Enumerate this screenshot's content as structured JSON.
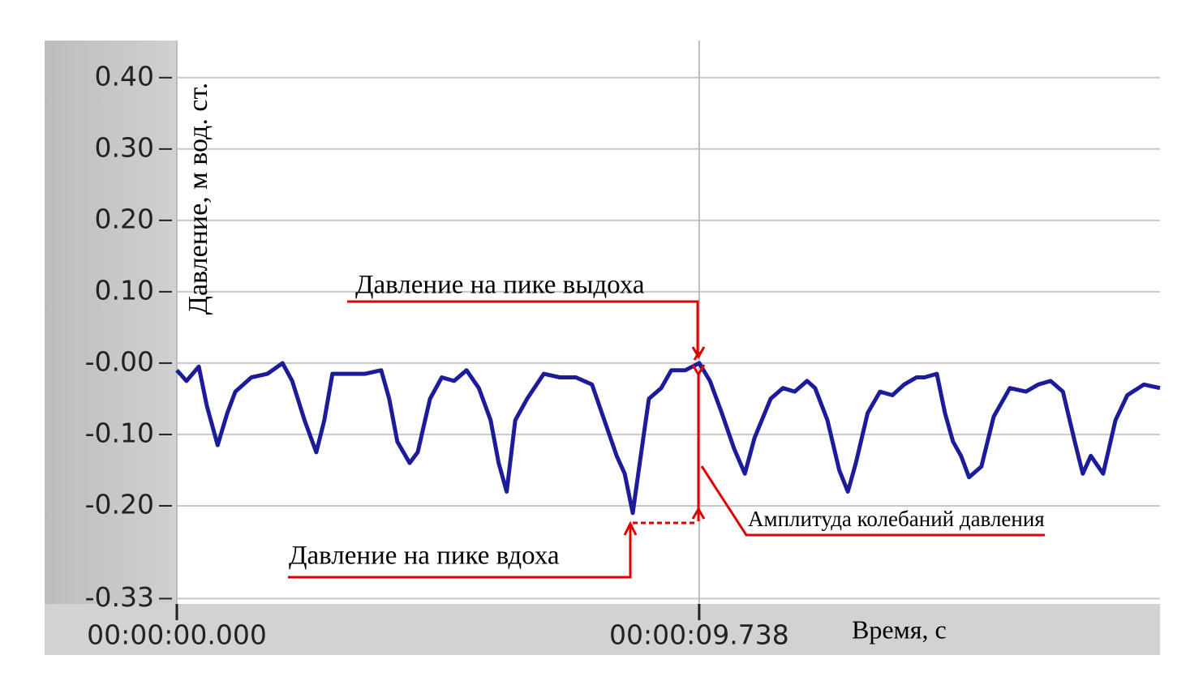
{
  "chart_data": {
    "type": "line",
    "ylabel": "Давление, м вод. ст.",
    "xlabel": "Время, с",
    "color": "#1c1c9a",
    "grid": true,
    "x": [
      0,
      0.18,
      0.41,
      0.56,
      0.76,
      0.94,
      1.09,
      1.39,
      1.69,
      1.97,
      2.15,
      2.38,
      2.6,
      2.75,
      2.9,
      3.21,
      3.51,
      3.81,
      3.96,
      4.11,
      4.34,
      4.49,
      4.72,
      4.94,
      5.17,
      5.4,
      5.63,
      5.85,
      6.0,
      6.15,
      6.31,
      6.53,
      6.84,
      7.14,
      7.44,
      7.74,
      7.97,
      8.2,
      8.35,
      8.5,
      8.65,
      8.8,
      9.03,
      9.22,
      9.48,
      9.74,
      9.94,
      10.16,
      10.39,
      10.59,
      10.77,
      11.07,
      11.3,
      11.52,
      11.75,
      11.9,
      12.13,
      12.35,
      12.51,
      12.66,
      12.88,
      13.11,
      13.34,
      13.56,
      13.79,
      13.94,
      14.17,
      14.32,
      14.47,
      14.62,
      14.77,
      15.0,
      15.23,
      15.53,
      15.83,
      16.06,
      16.29,
      16.52,
      16.74,
      16.89,
      17.04,
      17.27,
      17.5,
      17.72,
      18.03,
      18.33
    ],
    "values": [
      -0.01,
      -0.025,
      -0.005,
      -0.06,
      -0.115,
      -0.07,
      -0.04,
      -0.02,
      -0.015,
      0.0,
      -0.025,
      -0.08,
      -0.125,
      -0.08,
      -0.015,
      -0.015,
      -0.015,
      -0.01,
      -0.05,
      -0.11,
      -0.14,
      -0.125,
      -0.05,
      -0.02,
      -0.025,
      -0.01,
      -0.035,
      -0.08,
      -0.14,
      -0.18,
      -0.08,
      -0.05,
      -0.015,
      -0.02,
      -0.02,
      -0.03,
      -0.08,
      -0.13,
      -0.155,
      -0.21,
      -0.13,
      -0.05,
      -0.035,
      -0.01,
      -0.01,
      0.0,
      -0.025,
      -0.07,
      -0.12,
      -0.155,
      -0.105,
      -0.05,
      -0.035,
      -0.04,
      -0.025,
      -0.035,
      -0.08,
      -0.15,
      -0.18,
      -0.14,
      -0.07,
      -0.04,
      -0.045,
      -0.03,
      -0.02,
      -0.02,
      -0.015,
      -0.07,
      -0.11,
      -0.13,
      -0.16,
      -0.145,
      -0.075,
      -0.035,
      -0.04,
      -0.03,
      -0.025,
      -0.04,
      -0.11,
      -0.155,
      -0.13,
      -0.155,
      -0.08,
      -0.045,
      -0.03,
      -0.035
    ],
    "xlim": [
      0,
      18.33
    ],
    "xticks": [
      {
        "value": 0,
        "label": "00:00:00.000"
      },
      {
        "value": 9.738,
        "label": "00:00:09.738"
      }
    ],
    "ylim": [
      -0.3375,
      0.452
    ],
    "yticks": [
      {
        "value": 0.4,
        "label": "0.40"
      },
      {
        "value": 0.3,
        "label": "0.30"
      },
      {
        "value": 0.2,
        "label": "0.20"
      },
      {
        "value": 0.1,
        "label": "0.10"
      },
      {
        "value": 0,
        "label": "-0.00"
      },
      {
        "value": -0.1,
        "label": "-0.10"
      },
      {
        "value": -0.2,
        "label": "-0.20"
      },
      {
        "value": -0.33,
        "label": "-0.33"
      }
    ],
    "annotations": [
      "Давление на пике выдоха",
      "Давление на пике вдоха",
      "Амплитуда колебаний давления"
    ]
  }
}
